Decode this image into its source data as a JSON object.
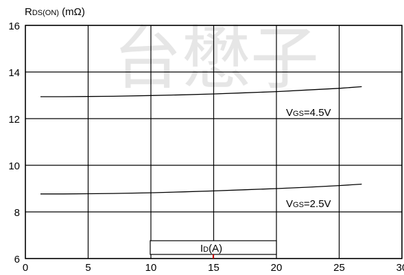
{
  "chart_data": {
    "type": "line",
    "ylabel": {
      "main": "R",
      "sub": "DS(ON)",
      "unit": " (mΩ)"
    },
    "xlabel": {
      "main": "I",
      "sub": "D",
      "unit": "(A)"
    },
    "xlim": [
      0,
      30
    ],
    "ylim": [
      6,
      16
    ],
    "xticks": [
      0,
      5,
      10,
      15,
      20,
      25,
      30
    ],
    "yticks": [
      6,
      8,
      10,
      12,
      14,
      16
    ],
    "grid": true,
    "watermark": "台懋子",
    "series": [
      {
        "name": {
          "main": "V",
          "sub": "GS",
          "rest": "=4.5V"
        },
        "x": [
          1.2,
          3,
          5,
          7,
          10,
          12.5,
          15,
          17.5,
          20,
          22.5,
          25,
          26.8
        ],
        "y": [
          12.94,
          12.94,
          12.95,
          12.96,
          12.99,
          13.02,
          13.06,
          13.11,
          13.16,
          13.23,
          13.3,
          13.37
        ]
      },
      {
        "name": {
          "main": "V",
          "sub": "GS",
          "rest": "=2.5V"
        },
        "x": [
          1.2,
          3,
          5,
          7,
          10,
          12.5,
          15,
          17.5,
          20,
          22.5,
          25,
          26.8
        ],
        "y": [
          8.77,
          8.77,
          8.78,
          8.79,
          8.82,
          8.86,
          8.9,
          8.95,
          9.0,
          9.06,
          9.13,
          9.19
        ]
      }
    ]
  }
}
